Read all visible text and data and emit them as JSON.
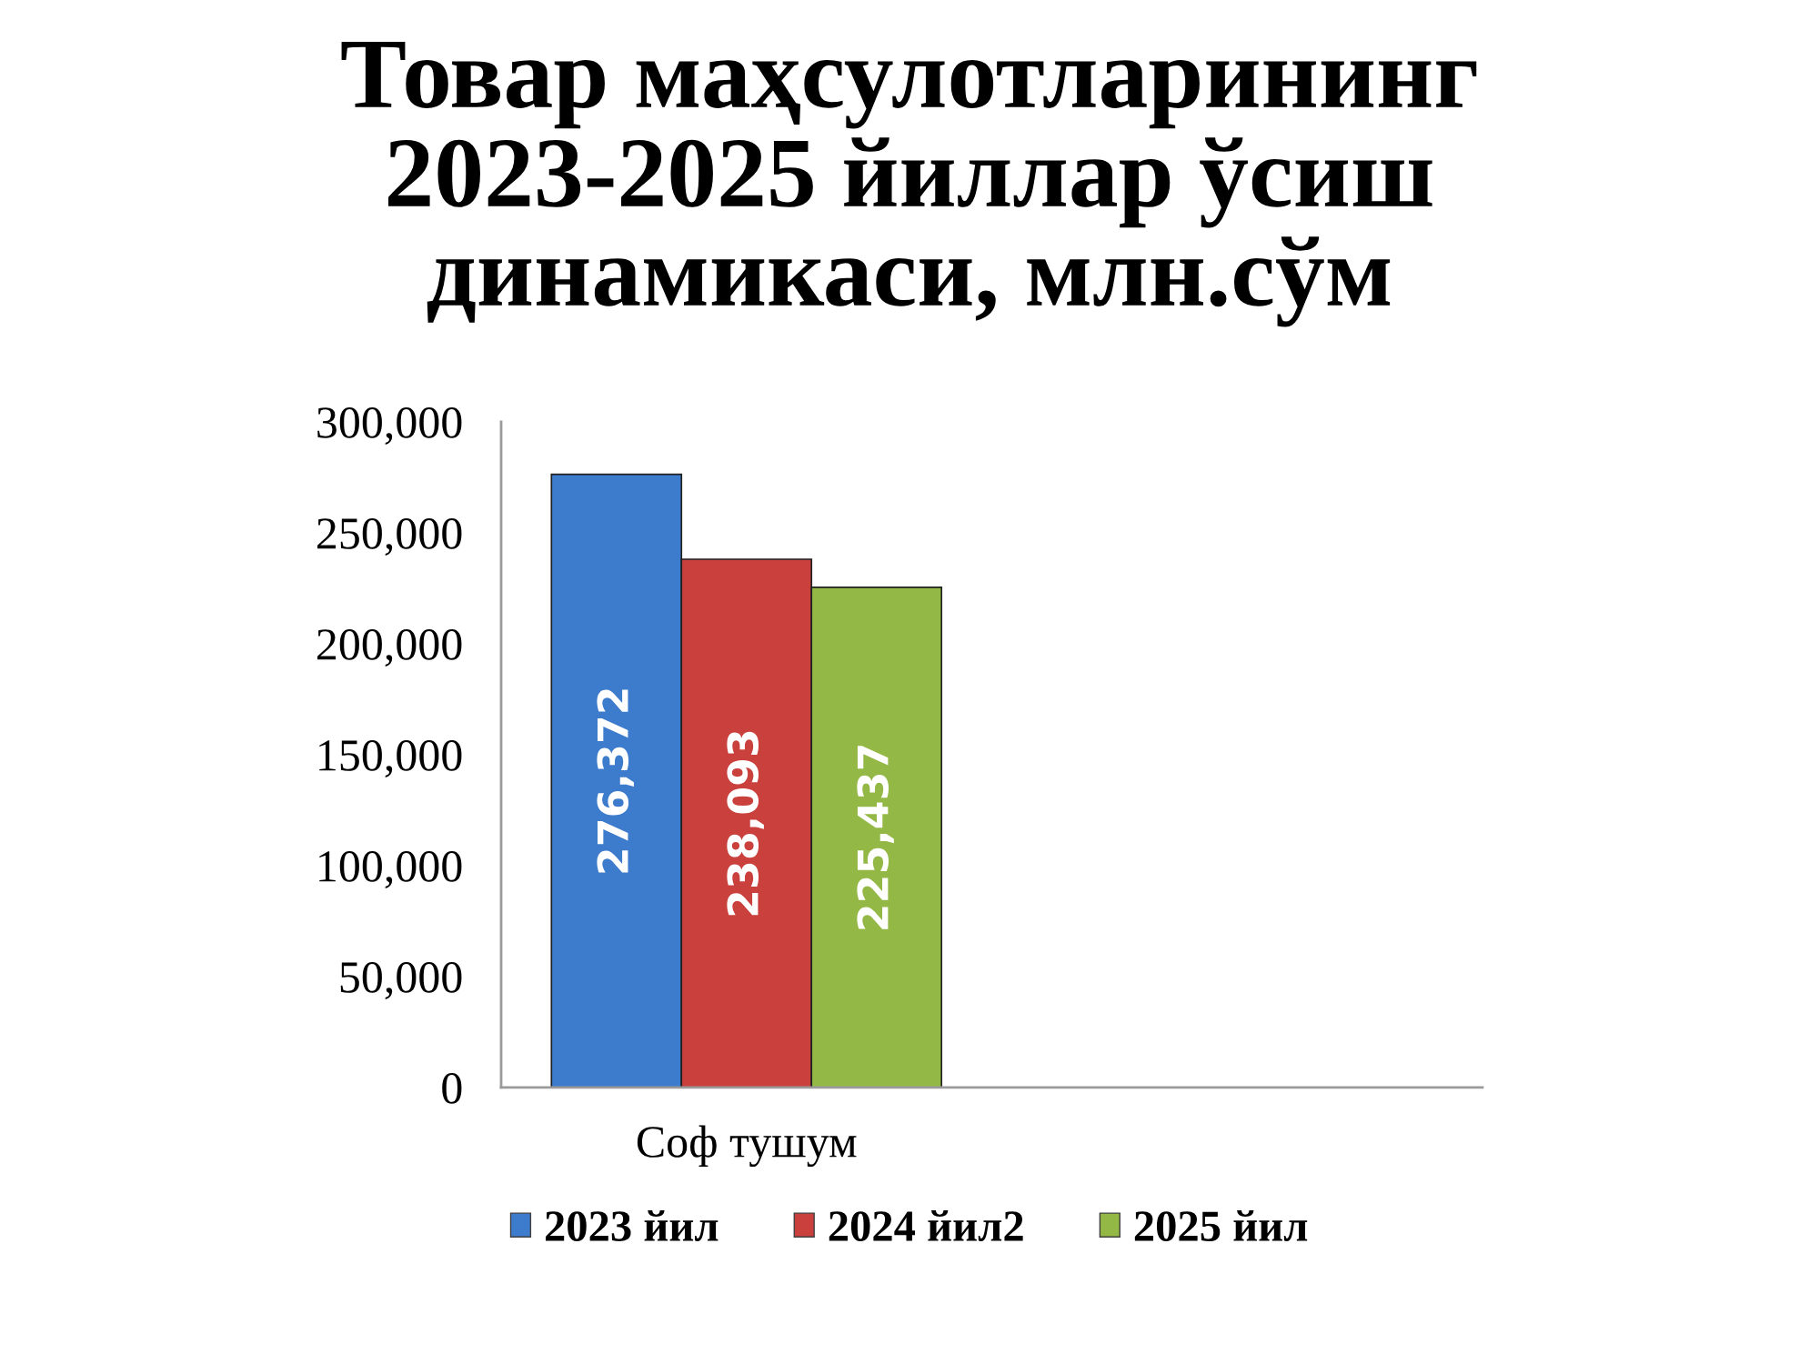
{
  "chart_data": {
    "type": "bar",
    "title": "Товар маҳсулотларининг\n2023-2025 йиллар ўсиш\nдинамикаси, млн.сўм",
    "categories": [
      "Соф тушум",
      null
    ],
    "series": [
      {
        "name": "2023 йил",
        "color": "#3d7bcc",
        "values": [
          276372,
          null
        ],
        "value_labels": [
          "276,372",
          null
        ]
      },
      {
        "name": "2024 йил2",
        "color": "#c9403d",
        "values": [
          238093,
          null
        ],
        "value_labels": [
          "238,093",
          null
        ]
      },
      {
        "name": "2025 йил",
        "color": "#94b845",
        "values": [
          225437,
          null
        ],
        "value_labels": [
          "225,437",
          null
        ]
      }
    ],
    "ylim": [
      0,
      300000
    ],
    "yticks": [
      {
        "value": 0,
        "label": "0"
      },
      {
        "value": 50000,
        "label": "50,000"
      },
      {
        "value": 100000,
        "label": "100,000"
      },
      {
        "value": 150000,
        "label": "150,000"
      },
      {
        "value": 200000,
        "label": "200,000"
      },
      {
        "value": 250000,
        "label": "250,000"
      },
      {
        "value": 300000,
        "label": "300,000"
      }
    ],
    "grid": false,
    "legend": "bottom"
  }
}
